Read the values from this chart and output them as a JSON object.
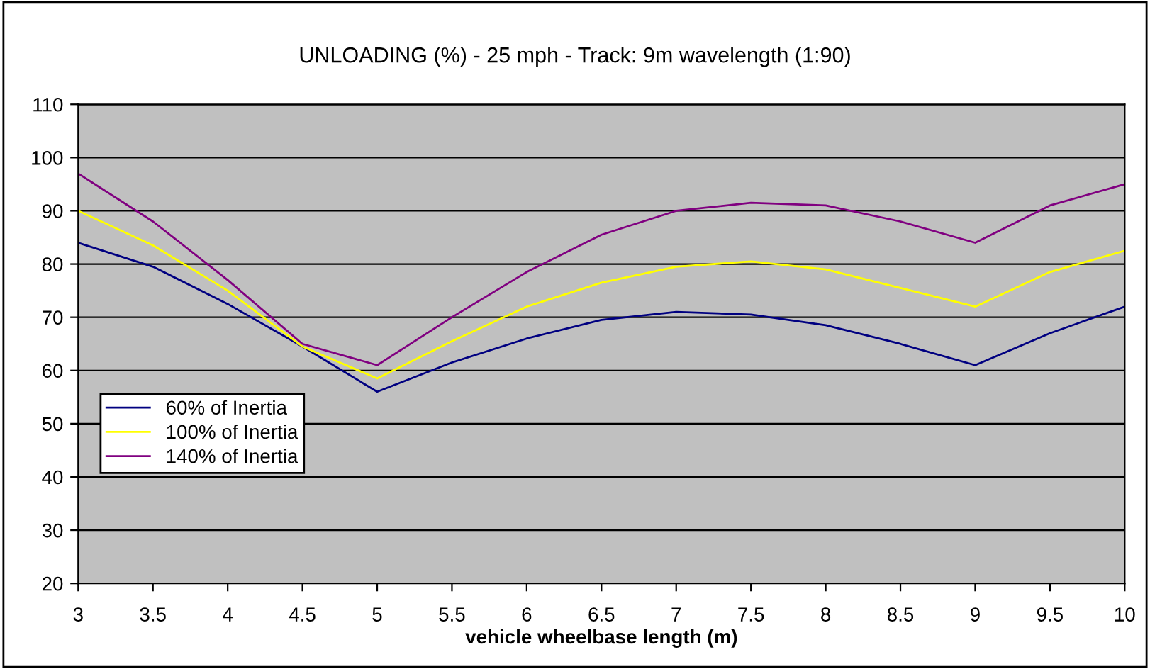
{
  "chart_data": {
    "type": "line",
    "title": "UNLOADING (%) - 25 mph - Track: 9m wavelength (1:90)",
    "xlabel": "vehicle wheelbase length (m)",
    "x": [
      3,
      3.5,
      4,
      4.5,
      5,
      5.5,
      6,
      6.5,
      7,
      7.5,
      8,
      8.5,
      9,
      9.5,
      10
    ],
    "series": [
      {
        "name": "60% of Inertia",
        "color": "#000080",
        "values": [
          84,
          79.5,
          72.5,
          64.5,
          56,
          61.5,
          66,
          69.5,
          71,
          70.5,
          68.5,
          65,
          61,
          67,
          72
        ]
      },
      {
        "name": "100% of Inertia",
        "color": "#ffff00",
        "values": [
          90,
          83.5,
          75,
          64.5,
          58.5,
          65.5,
          72,
          76.5,
          79.5,
          80.5,
          79,
          75.5,
          72,
          78.5,
          82.5
        ]
      },
      {
        "name": "140% of Inertia",
        "color": "#800080",
        "values": [
          97,
          88,
          77,
          65,
          61,
          70,
          78.5,
          85.5,
          90,
          91.5,
          91,
          88,
          84,
          91,
          95
        ]
      }
    ],
    "xlim": [
      3,
      10
    ],
    "xticks": [
      3,
      3.5,
      4,
      4.5,
      5,
      5.5,
      6,
      6.5,
      7,
      7.5,
      8,
      8.5,
      9,
      9.5,
      10
    ],
    "ylim": [
      20,
      110
    ],
    "yticks": [
      20,
      30,
      40,
      50,
      60,
      70,
      80,
      90,
      100,
      110
    ],
    "grid": "y",
    "legend": "bottom left",
    "marker": "none",
    "line_style": "solid"
  }
}
